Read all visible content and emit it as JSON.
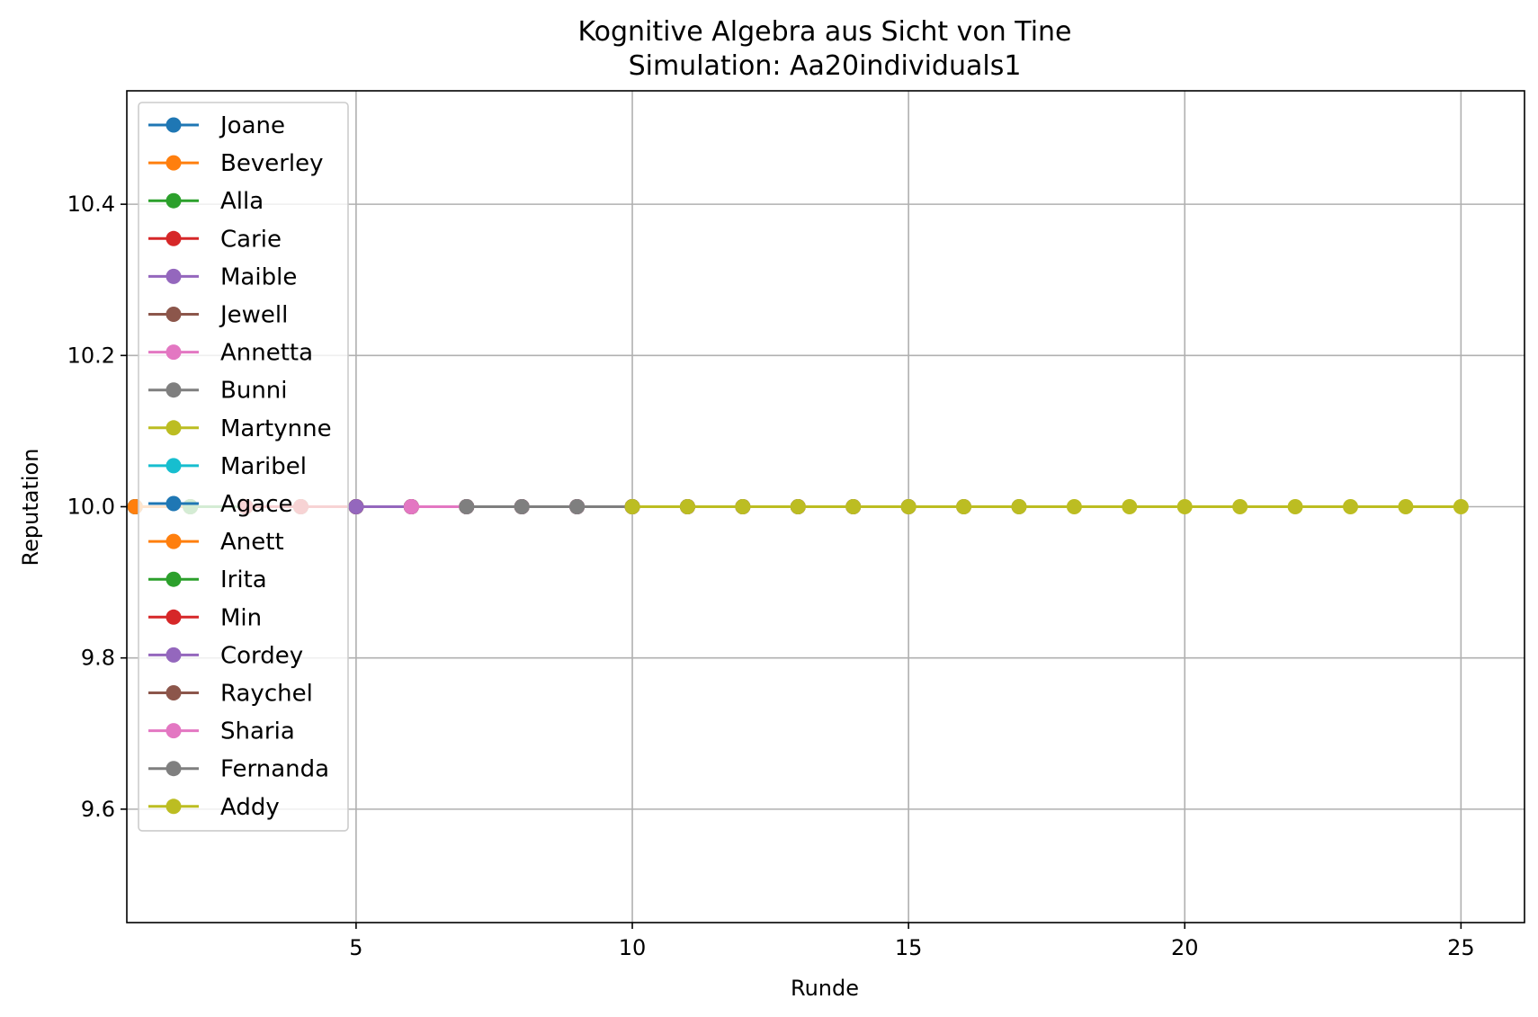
{
  "chart_data": {
    "type": "line",
    "title": "Kognitive Algebra aus Sicht von Tine",
    "subtitle": "Simulation: Aa20individuals1",
    "xlabel": "Runde",
    "ylabel": "Reputation",
    "xlim": [
      0.85,
      26.15
    ],
    "ylim": [
      9.45,
      10.55
    ],
    "xticks": [
      5,
      10,
      15,
      20,
      25
    ],
    "yticks": [
      9.6,
      9.8,
      10.0,
      10.2,
      10.4
    ],
    "xtick_labels": [
      "5",
      "10",
      "15",
      "20",
      "25"
    ],
    "ytick_labels": [
      "9.6",
      "9.8",
      "10.0",
      "10.2",
      "10.4"
    ],
    "grid": true,
    "legend_position": "upper-left",
    "series": [
      {
        "name": "Joane",
        "color": "#1f77b4",
        "x": [],
        "y": []
      },
      {
        "name": "Beverley",
        "color": "#ff7f0e",
        "x": [
          1
        ],
        "y": [
          10.0
        ]
      },
      {
        "name": "Alla",
        "color": "#2ca02c",
        "x": [
          1,
          2
        ],
        "y": [
          10.0,
          10.0
        ]
      },
      {
        "name": "Carie",
        "color": "#d62728",
        "x": [
          1,
          2,
          3
        ],
        "y": [
          10.0,
          10.0,
          10.0
        ]
      },
      {
        "name": "Maible",
        "color": "#9467bd",
        "x": [
          1,
          2,
          3,
          4
        ],
        "y": [
          10.0,
          10.0,
          10.0,
          10.0
        ]
      },
      {
        "name": "Jewell",
        "color": "#8c564b",
        "x": [
          1,
          2,
          3,
          4,
          5
        ],
        "y": [
          10.0,
          10.0,
          10.0,
          10.0,
          10.0
        ]
      },
      {
        "name": "Annetta",
        "color": "#e377c2",
        "x": [
          1,
          2,
          3,
          4,
          5,
          6
        ],
        "y": [
          10.0,
          10.0,
          10.0,
          10.0,
          10.0,
          10.0
        ]
      },
      {
        "name": "Bunni",
        "color": "#7f7f7f",
        "x": [
          1,
          2,
          3,
          4,
          5,
          6,
          7
        ],
        "y": [
          10.0,
          10.0,
          10.0,
          10.0,
          10.0,
          10.0,
          10.0
        ]
      },
      {
        "name": "Martynne",
        "color": "#bcbd22",
        "x": [
          1,
          2,
          3,
          4,
          5,
          6,
          7,
          8
        ],
        "y": [
          10.0,
          10.0,
          10.0,
          10.0,
          10.0,
          10.0,
          10.0,
          10.0
        ]
      },
      {
        "name": "Maribel",
        "color": "#17becf",
        "x": [
          1,
          2,
          3,
          4,
          5,
          6,
          7,
          8,
          9
        ],
        "y": [
          10.0,
          10.0,
          10.0,
          10.0,
          10.0,
          10.0,
          10.0,
          10.0,
          10.0
        ]
      },
      {
        "name": "Agace",
        "color": "#1f77b4",
        "x": [
          1,
          2,
          3,
          4,
          5,
          6,
          7,
          8,
          9,
          10
        ],
        "y": [
          10.0,
          10.0,
          10.0,
          10.0,
          10.0,
          10.0,
          10.0,
          10.0,
          10.0,
          10.0
        ]
      },
      {
        "name": "Anett",
        "color": "#ff7f0e",
        "x": [
          1,
          2,
          3,
          4,
          5,
          6,
          7,
          8,
          9,
          10,
          11
        ],
        "y": [
          10.0,
          10.0,
          10.0,
          10.0,
          10.0,
          10.0,
          10.0,
          10.0,
          10.0,
          10.0,
          10.0
        ]
      },
      {
        "name": "Irita",
        "color": "#2ca02c",
        "x": [
          2,
          3,
          4,
          5,
          6,
          7,
          8,
          9,
          10,
          11,
          12
        ],
        "y": [
          10.0,
          10.0,
          10.0,
          10.0,
          10.0,
          10.0,
          10.0,
          10.0,
          10.0,
          10.0,
          10.0
        ]
      },
      {
        "name": "Min",
        "color": "#d62728",
        "x": [
          3,
          4,
          5,
          6,
          7,
          8,
          9,
          10,
          11,
          12,
          13
        ],
        "y": [
          10.0,
          10.0,
          10.0,
          10.0,
          10.0,
          10.0,
          10.0,
          10.0,
          10.0,
          10.0,
          10.0
        ]
      },
      {
        "name": "Cordey",
        "color": "#9467bd",
        "x": [
          5,
          6,
          7,
          8,
          9,
          10,
          11,
          12,
          13,
          14
        ],
        "y": [
          10.0,
          10.0,
          10.0,
          10.0,
          10.0,
          10.0,
          10.0,
          10.0,
          10.0,
          10.0
        ]
      },
      {
        "name": "Raychel",
        "color": "#8c564b",
        "x": [
          6,
          7,
          8,
          9,
          10,
          11,
          12,
          13,
          14,
          15
        ],
        "y": [
          10.0,
          10.0,
          10.0,
          10.0,
          10.0,
          10.0,
          10.0,
          10.0,
          10.0,
          10.0
        ]
      },
      {
        "name": "Sharia",
        "color": "#e377c2",
        "x": [
          6,
          7,
          8,
          9,
          10,
          11,
          12,
          13,
          14,
          15,
          16
        ],
        "y": [
          10.0,
          10.0,
          10.0,
          10.0,
          10.0,
          10.0,
          10.0,
          10.0,
          10.0,
          10.0,
          10.0
        ]
      },
      {
        "name": "Fernanda",
        "color": "#7f7f7f",
        "x": [
          7,
          8,
          9,
          10,
          11,
          12,
          13,
          14,
          15,
          16,
          17
        ],
        "y": [
          10.0,
          10.0,
          10.0,
          10.0,
          10.0,
          10.0,
          10.0,
          10.0,
          10.0,
          10.0,
          10.0
        ]
      },
      {
        "name": "Addy",
        "color": "#bcbd22",
        "x": [
          10,
          11,
          12,
          13,
          14,
          15,
          16,
          17,
          18,
          19,
          20,
          21,
          22,
          23,
          24,
          25
        ],
        "y": [
          10.0,
          10.0,
          10.0,
          10.0,
          10.0,
          10.0,
          10.0,
          10.0,
          10.0,
          10.0,
          10.0,
          10.0,
          10.0,
          10.0,
          10.0,
          10.0
        ]
      }
    ]
  }
}
